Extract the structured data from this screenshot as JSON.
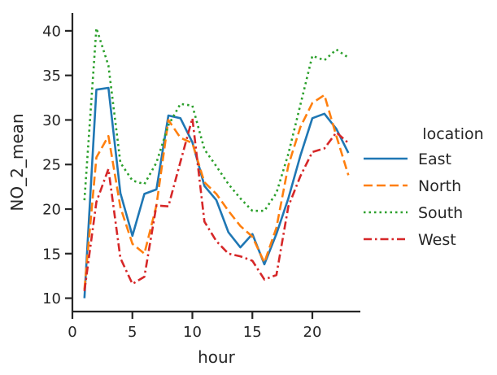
{
  "chart_data": {
    "type": "line",
    "xlabel": "hour",
    "ylabel": "NO_2_mean",
    "xlim": [
      0,
      24
    ],
    "ylim": [
      8.5,
      42
    ],
    "xticks": [
      0,
      5,
      10,
      15,
      20
    ],
    "yticks": [
      10,
      15,
      20,
      25,
      30,
      35,
      40
    ],
    "grid": false,
    "legend": {
      "title": "location",
      "placement": "right"
    },
    "x": [
      1,
      2,
      3,
      4,
      5,
      6,
      7,
      8,
      9,
      10,
      11,
      12,
      13,
      14,
      15,
      16,
      17,
      18,
      19,
      20,
      21,
      22,
      23
    ],
    "series": [
      {
        "name": "East",
        "color": "#1f77b4",
        "dash": "solid",
        "values": [
          10.0,
          33.4,
          33.6,
          21.8,
          17.0,
          21.7,
          22.2,
          30.5,
          30.2,
          27.5,
          22.6,
          21.0,
          17.4,
          15.7,
          17.2,
          13.8,
          17.2,
          21.2,
          26.0,
          30.2,
          30.7,
          29.0,
          26.3
        ]
      },
      {
        "name": "North",
        "color": "#ff7f0e",
        "dash": "dashed",
        "values": [
          11.0,
          25.8,
          28.2,
          20.2,
          16.1,
          15.0,
          20.4,
          30.0,
          28.0,
          27.4,
          23.0,
          21.7,
          19.8,
          18.1,
          16.9,
          14.0,
          17.9,
          24.9,
          29.2,
          31.9,
          32.8,
          28.2,
          23.8
        ]
      },
      {
        "name": "South",
        "color": "#2ca02c",
        "dash": "dotted",
        "values": [
          21.0,
          40.3,
          36.1,
          25.2,
          23.2,
          22.8,
          25.2,
          29.4,
          31.8,
          31.6,
          26.7,
          24.8,
          22.8,
          21.2,
          19.8,
          19.8,
          21.8,
          26.2,
          31.7,
          37.2,
          36.7,
          37.9,
          37.0
        ]
      },
      {
        "name": "West",
        "color": "#d62728",
        "dash": "dashdot",
        "values": [
          10.8,
          20.8,
          24.5,
          14.5,
          11.6,
          12.4,
          20.4,
          20.3,
          25.3,
          30.2,
          18.6,
          16.4,
          15.0,
          14.7,
          14.2,
          12.1,
          12.6,
          20.3,
          23.7,
          26.4,
          26.8,
          28.6,
          27.4
        ]
      }
    ]
  }
}
